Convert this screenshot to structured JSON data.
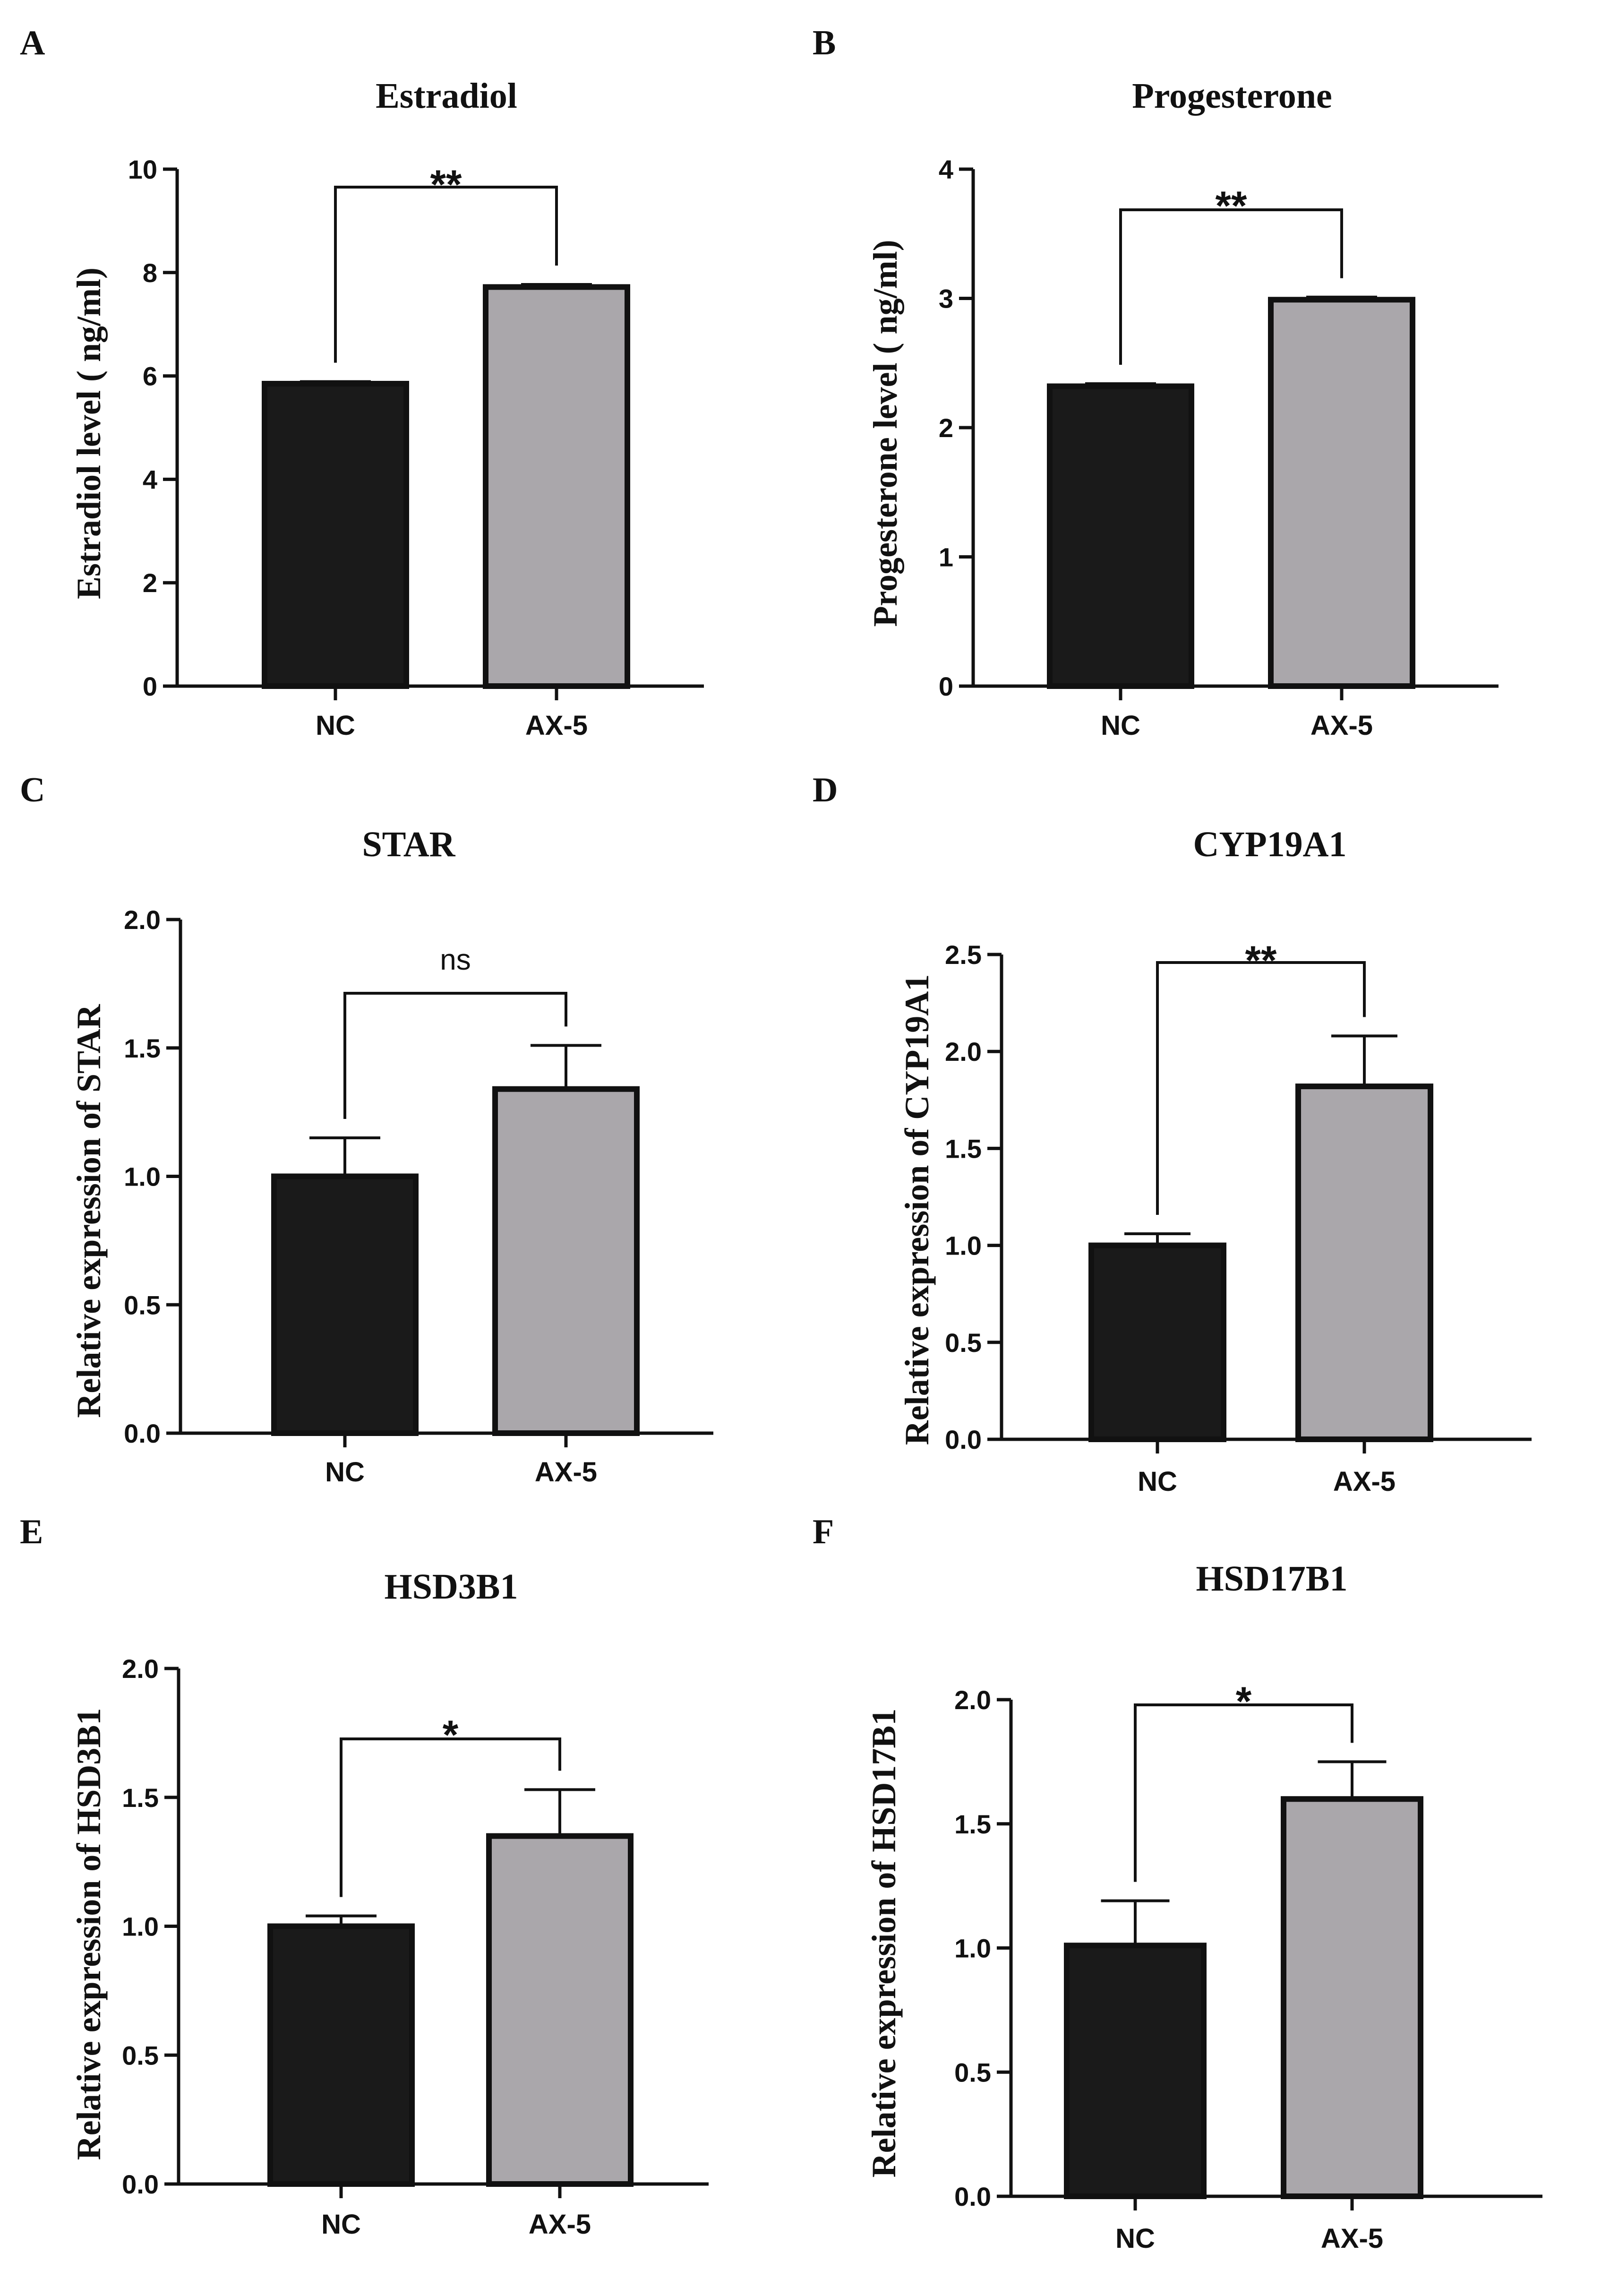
{
  "colors": {
    "nc_bar": "#1a1a1a",
    "ax5_bar": "#aaa7ab",
    "axis": "#111111",
    "background": "#ffffff"
  },
  "chart_data": [
    {
      "panel": "A",
      "type": "bar",
      "title": "Estradiol",
      "ylabel": "Estradiol level ( ng/ml)",
      "xlabel": "",
      "categories": [
        "NC",
        "AX-5"
      ],
      "values": [
        5.85,
        7.72
      ],
      "errors": [
        0.04,
        0.05
      ],
      "ylim": [
        0,
        10
      ],
      "yticks": [
        0,
        2,
        4,
        6,
        8,
        10
      ],
      "ytick_labels": [
        "0",
        "2",
        "4",
        "6",
        "8",
        "10"
      ],
      "significance": "**"
    },
    {
      "panel": "B",
      "type": "bar",
      "title": "Progesterone",
      "ylabel": "Progesterone level ( ng/ml)",
      "xlabel": "",
      "categories": [
        "NC",
        "AX-5"
      ],
      "values": [
        2.32,
        2.99
      ],
      "errors": [
        0.02,
        0.02
      ],
      "ylim": [
        0,
        4
      ],
      "yticks": [
        0,
        1,
        2,
        3,
        4
      ],
      "ytick_labels": [
        "0",
        "1",
        "2",
        "3",
        "4"
      ],
      "significance": "**"
    },
    {
      "panel": "C",
      "type": "bar",
      "title": "STAR",
      "ylabel": "Relative expression of STAR",
      "xlabel": "",
      "categories": [
        "NC",
        "AX-5"
      ],
      "values": [
        1.0,
        1.34
      ],
      "errors": [
        0.15,
        0.17
      ],
      "ylim": [
        0,
        2.0
      ],
      "yticks": [
        0,
        0.5,
        1.0,
        1.5,
        2.0
      ],
      "ytick_labels": [
        "0.0",
        "0.5",
        "1.0",
        "1.5",
        "2.0"
      ],
      "significance": "ns"
    },
    {
      "panel": "D",
      "type": "bar",
      "title": "CYP19A1",
      "ylabel": "Relative expression of CYP19A1",
      "xlabel": "",
      "categories": [
        "NC",
        "AX-5"
      ],
      "values": [
        1.0,
        1.82
      ],
      "errors": [
        0.06,
        0.26
      ],
      "ylim": [
        0,
        2.5
      ],
      "yticks": [
        0,
        0.5,
        1.0,
        1.5,
        2.0,
        2.5
      ],
      "ytick_labels": [
        "0.0",
        "0.5",
        "1.0",
        "1.5",
        "2.0",
        "2.5"
      ],
      "significance": "**"
    },
    {
      "panel": "E",
      "type": "bar",
      "title": "HSD3B1",
      "ylabel": "Relative expression of HSD3B1",
      "xlabel": "",
      "categories": [
        "NC",
        "AX-5"
      ],
      "values": [
        1.0,
        1.35
      ],
      "errors": [
        0.04,
        0.18
      ],
      "ylim": [
        0,
        2.0
      ],
      "yticks": [
        0,
        0.5,
        1.0,
        1.5,
        2.0
      ],
      "ytick_labels": [
        "0.0",
        "0.5",
        "1.0",
        "1.5",
        "2.0"
      ],
      "significance": "*"
    },
    {
      "panel": "F",
      "type": "bar",
      "title": "HSD17B1",
      "ylabel": "Relative expression of HSD17B1",
      "xlabel": "",
      "categories": [
        "NC",
        "AX-5"
      ],
      "values": [
        1.01,
        1.6
      ],
      "errors": [
        0.18,
        0.15
      ],
      "ylim": [
        0,
        2.0
      ],
      "yticks": [
        0,
        0.5,
        1.0,
        1.5,
        2.0
      ],
      "ytick_labels": [
        "0.0",
        "0.5",
        "1.0",
        "1.5",
        "2.0"
      ],
      "significance": "*"
    }
  ]
}
